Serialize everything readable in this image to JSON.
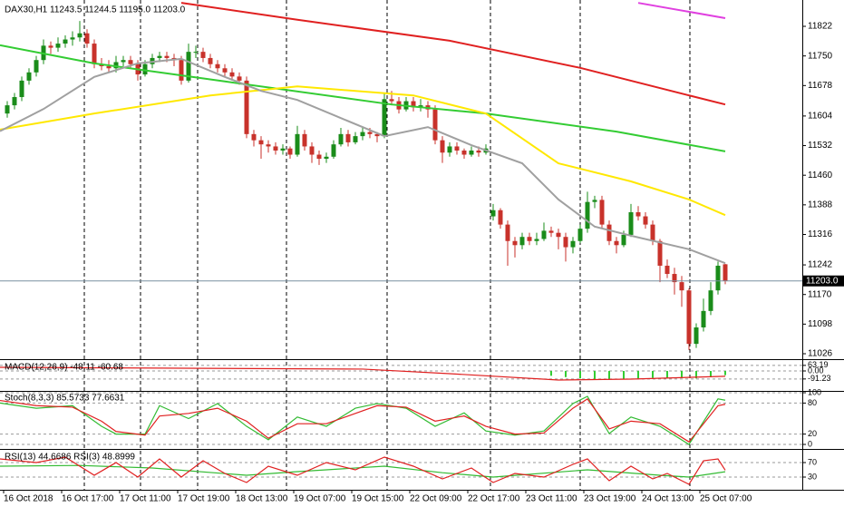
{
  "chart_data": [
    {
      "type": "candlestick",
      "title": "DAX30,H1  11243.5 11244.5 11195.0 11203.0",
      "up_color": "#1a8c1a",
      "down_color": "#c8322b",
      "ylim": [
        11015,
        11886
      ],
      "yticks": [
        11822,
        11750,
        11678,
        11604,
        11532,
        11460,
        11388,
        11316,
        11242,
        11170,
        11098,
        11026
      ],
      "current_price": {
        "value": 11203,
        "label": "11203.0"
      },
      "ohlc": [
        [
          11610,
          11640,
          11600,
          11630
        ],
        [
          11630,
          11660,
          11620,
          11650
        ],
        [
          11650,
          11700,
          11640,
          11690
        ],
        [
          11690,
          11720,
          11680,
          11710
        ],
        [
          11710,
          11750,
          11700,
          11740
        ],
        [
          11740,
          11790,
          11730,
          11775
        ],
        [
          11775,
          11785,
          11755,
          11770
        ],
        [
          11770,
          11795,
          11760,
          11780
        ],
        [
          11780,
          11800,
          11770,
          11790
        ],
        [
          11790,
          11810,
          11775,
          11795
        ],
        [
          11795,
          11835,
          11785,
          11805
        ],
        [
          11805,
          11815,
          11770,
          11780
        ],
        [
          11780,
          11790,
          11720,
          11730
        ],
        [
          11730,
          11745,
          11715,
          11725
        ],
        [
          11725,
          11740,
          11710,
          11720
        ],
        [
          11720,
          11750,
          11710,
          11735
        ],
        [
          11735,
          11750,
          11725,
          11740
        ],
        [
          11740,
          11750,
          11720,
          11730
        ],
        [
          11730,
          11740,
          11690,
          11705
        ],
        [
          11705,
          11740,
          11700,
          11730
        ],
        [
          11730,
          11755,
          11720,
          11745
        ],
        [
          11745,
          11760,
          11735,
          11750
        ],
        [
          11750,
          11760,
          11735,
          11745
        ],
        [
          11745,
          11755,
          11725,
          11740
        ],
        [
          11740,
          11750,
          11680,
          11690
        ],
        [
          11690,
          11780,
          11685,
          11760
        ],
        [
          11760,
          11775,
          11745,
          11760
        ],
        [
          11760,
          11770,
          11735,
          11745
        ],
        [
          11745,
          11755,
          11720,
          11730
        ],
        [
          11730,
          11740,
          11710,
          11720
        ],
        [
          11720,
          11730,
          11700,
          11710
        ],
        [
          11710,
          11720,
          11690,
          11700
        ],
        [
          11700,
          11710,
          11680,
          11690
        ],
        [
          11690,
          11700,
          11550,
          11560
        ],
        [
          11560,
          11570,
          11530,
          11545
        ],
        [
          11545,
          11555,
          11500,
          11535
        ],
        [
          11535,
          11545,
          11515,
          11530
        ],
        [
          11530,
          11540,
          11510,
          11520
        ],
        [
          11520,
          11535,
          11510,
          11525
        ],
        [
          11525,
          11530,
          11500,
          11510
        ],
        [
          11510,
          11580,
          11505,
          11560
        ],
        [
          11560,
          11570,
          11520,
          11530
        ],
        [
          11530,
          11540,
          11490,
          11510
        ],
        [
          11510,
          11520,
          11485,
          11500
        ],
        [
          11500,
          11515,
          11490,
          11505
        ],
        [
          11505,
          11545,
          11500,
          11535
        ],
        [
          11535,
          11575,
          11530,
          11560
        ],
        [
          11560,
          11570,
          11530,
          11540
        ],
        [
          11540,
          11565,
          11535,
          11555
        ],
        [
          11555,
          11575,
          11545,
          11565
        ],
        [
          11565,
          11575,
          11550,
          11560
        ],
        [
          11560,
          11565,
          11540,
          11555
        ],
        [
          11555,
          11660,
          11550,
          11645
        ],
        [
          11645,
          11665,
          11630,
          11640
        ],
        [
          11640,
          11650,
          11610,
          11620
        ],
        [
          11620,
          11650,
          11615,
          11640
        ],
        [
          11640,
          11650,
          11615,
          11625
        ],
        [
          11625,
          11645,
          11615,
          11630
        ],
        [
          11630,
          11640,
          11600,
          11620
        ],
        [
          11620,
          11630,
          11535,
          11545
        ],
        [
          11545,
          11555,
          11490,
          11515
        ],
        [
          11515,
          11540,
          11505,
          11530
        ],
        [
          11530,
          11540,
          11510,
          11520
        ],
        [
          11520,
          11525,
          11500,
          11510
        ],
        [
          11510,
          11530,
          11505,
          11520
        ],
        [
          11520,
          11530,
          11505,
          11515
        ],
        [
          11515,
          11535,
          11510,
          11525
        ],
        [
          11360,
          11390,
          11350,
          11375
        ],
        [
          11375,
          11380,
          11330,
          11340
        ],
        [
          11340,
          11350,
          11240,
          11300
        ],
        [
          11300,
          11310,
          11260,
          11290
        ],
        [
          11290,
          11320,
          11280,
          11310
        ],
        [
          11310,
          11320,
          11290,
          11300
        ],
        [
          11300,
          11320,
          11290,
          11305
        ],
        [
          11305,
          11345,
          11300,
          11325
        ],
        [
          11325,
          11335,
          11310,
          11320
        ],
        [
          11320,
          11330,
          11280,
          11310
        ],
        [
          11310,
          11320,
          11250,
          11285
        ],
        [
          11285,
          11310,
          11270,
          11300
        ],
        [
          11300,
          11340,
          11295,
          11330
        ],
        [
          11330,
          11420,
          11320,
          11395
        ],
        [
          11395,
          11410,
          11380,
          11400
        ],
        [
          11400,
          11410,
          11330,
          11340
        ],
        [
          11340,
          11350,
          11290,
          11300
        ],
        [
          11300,
          11310,
          11270,
          11290
        ],
        [
          11290,
          11325,
          11285,
          11315
        ],
        [
          11315,
          11390,
          11310,
          11370
        ],
        [
          11370,
          11385,
          11350,
          11360
        ],
        [
          11360,
          11370,
          11330,
          11340
        ],
        [
          11340,
          11350,
          11290,
          11300
        ],
        [
          11300,
          11305,
          11200,
          11240
        ],
        [
          11240,
          11255,
          11210,
          11220
        ],
        [
          11220,
          11235,
          11170,
          11200
        ],
        [
          11200,
          11215,
          11140,
          11180
        ],
        [
          11180,
          11185,
          11035,
          11050
        ],
        [
          11050,
          11100,
          11040,
          11090
        ],
        [
          11090,
          11160,
          11080,
          11130
        ],
        [
          11130,
          11200,
          11120,
          11180
        ],
        [
          11180,
          11250,
          11170,
          11240
        ],
        [
          11243.5,
          11244.5,
          11195.0,
          11203.0
        ]
      ],
      "series": [
        {
          "color": "#e02020",
          "x": [
            24,
            40,
            61,
            79,
            94,
            99
          ],
          "values": [
            11879,
            11838,
            11787,
            11721,
            11654,
            11632
          ]
        },
        {
          "color": "#e040e0",
          "x": [
            87,
            99
          ],
          "values": [
            11879,
            11842
          ]
        },
        {
          "color": "#33cc33",
          "x": [
            -1,
            12,
            30,
            53,
            66,
            84,
            99
          ],
          "values": [
            11776,
            11732,
            11688,
            11632,
            11610,
            11566,
            11518
          ]
        },
        {
          "color": "#ffe800",
          "x": [
            -1,
            12,
            28,
            40,
            56,
            66,
            76,
            86,
            94,
            99
          ],
          "values": [
            11571,
            11610,
            11654,
            11676,
            11654,
            11610,
            11489,
            11445,
            11401,
            11363
          ]
        },
        {
          "color": "#a0a0a0",
          "x": [
            -1,
            5,
            12,
            18,
            24,
            30,
            35,
            40,
            46,
            52,
            58,
            64,
            71,
            76,
            81,
            86,
            94,
            99
          ],
          "values": [
            11567,
            11621,
            11699,
            11732,
            11743,
            11699,
            11665,
            11643,
            11599,
            11555,
            11577,
            11533,
            11489,
            11401,
            11335,
            11313,
            11280,
            11246
          ]
        }
      ]
    },
    {
      "type": "macd",
      "title": "MACD(12,26,9) -48.11 -60.68",
      "ylim": [
        -196,
        103
      ],
      "yticks": [
        63.19,
        {
          "value": 0,
          "label": "0.00"
        },
        -91.23
      ],
      "grid": true,
      "histogram": {
        "color": "#33cc33",
        "x": [
          75,
          77,
          79,
          81,
          83,
          85,
          87,
          89,
          91,
          93,
          95,
          97,
          99
        ],
        "values": [
          -55,
          -70,
          -85,
          -95,
          -100,
          -95,
          -85,
          -80,
          -80,
          -75,
          -85,
          -70,
          -48.11
        ]
      },
      "series": [
        {
          "color": "#e02020",
          "x": [
            -1,
            49,
            61,
            76,
            86,
            99
          ],
          "values": [
            41,
            21,
            -31,
            -103,
            -93,
            -60.68
          ]
        }
      ]
    },
    {
      "type": "line",
      "title": "Stoch(8,3,3) 85.5733 77.6631",
      "ylim": [
        0,
        100
      ],
      "yticks": [
        100,
        80,
        20,
        0
      ],
      "grid": true,
      "series": [
        {
          "color": "#33bb33",
          "x": [
            -1,
            4,
            9,
            13,
            15,
            19,
            21,
            25,
            29,
            33,
            36,
            40,
            44,
            48,
            51,
            55,
            59,
            63,
            66,
            70,
            74,
            78,
            80,
            83,
            86,
            90,
            94,
            98,
            99
          ],
          "values": [
            80,
            70,
            75,
            35,
            20,
            20,
            75,
            50,
            79,
            35,
            9,
            53,
            35,
            70,
            79,
            70,
            35,
            61,
            26,
            18,
            26,
            79,
            93,
            21,
            53,
            35,
            0,
            88,
            85.5733
          ]
        },
        {
          "color": "#e02020",
          "x": [
            -1,
            4,
            9,
            13,
            15,
            19,
            21,
            25,
            29,
            33,
            36,
            40,
            44,
            48,
            51,
            55,
            59,
            63,
            66,
            70,
            74,
            78,
            80,
            83,
            86,
            90,
            94,
            98,
            99
          ],
          "values": [
            85,
            75,
            72,
            45,
            25,
            18,
            55,
            60,
            70,
            45,
            12,
            40,
            40,
            60,
            75,
            72,
            45,
            55,
            35,
            20,
            22,
            70,
            88,
            30,
            45,
            40,
            5,
            75,
            77.6631
          ]
        }
      ]
    },
    {
      "type": "line",
      "title": "RSI(13) 44.6686  RSI(3) 48.8999",
      "ylim": [
        0,
        100
      ],
      "yticks": [
        70,
        30
      ],
      "grid": true,
      "xticks": [
        {
          "value": 0,
          "label": "16 Oct 2018"
        },
        {
          "value": 8,
          "label": "16 Oct 17:00"
        },
        {
          "value": 16,
          "label": "17 Oct 11:00"
        },
        {
          "value": 24,
          "label": "17 Oct 19:00"
        },
        {
          "value": 32,
          "label": "18 Oct 13:00"
        },
        {
          "value": 40,
          "label": "19 Oct 07:00"
        },
        {
          "value": 48,
          "label": "19 Oct 15:00"
        },
        {
          "value": 56,
          "label": "22 Oct 09:00"
        },
        {
          "value": 64,
          "label": "22 Oct 17:00"
        },
        {
          "value": 72,
          "label": "23 Oct 11:00"
        },
        {
          "value": 80,
          "label": "23 Oct 19:00"
        },
        {
          "value": 88,
          "label": "24 Oct 13:00"
        },
        {
          "value": 96,
          "label": "25 Oct 07:00"
        }
      ],
      "series": [
        {
          "color": "#33bb33",
          "x": [
            -1,
            10,
            20,
            33,
            40,
            52,
            60,
            67,
            80,
            90,
            94,
            99
          ],
          "values": [
            60,
            62,
            55,
            35,
            45,
            60,
            42,
            30,
            50,
            35,
            30,
            44.6686
          ]
        },
        {
          "color": "#e02020",
          "x": [
            -1,
            4,
            8,
            12,
            15,
            18,
            21,
            24,
            27,
            30,
            33,
            36,
            40,
            44,
            48,
            52,
            56,
            60,
            64,
            67,
            70,
            74,
            78,
            80,
            83,
            86,
            89,
            91,
            94,
            96,
            98,
            99
          ],
          "values": [
            80,
            70,
            85,
            35,
            70,
            30,
            80,
            30,
            75,
            40,
            15,
            60,
            35,
            70,
            50,
            85,
            60,
            25,
            55,
            15,
            40,
            30,
            65,
            80,
            20,
            60,
            25,
            40,
            10,
            75,
            80,
            48.8999
          ]
        }
      ]
    }
  ]
}
